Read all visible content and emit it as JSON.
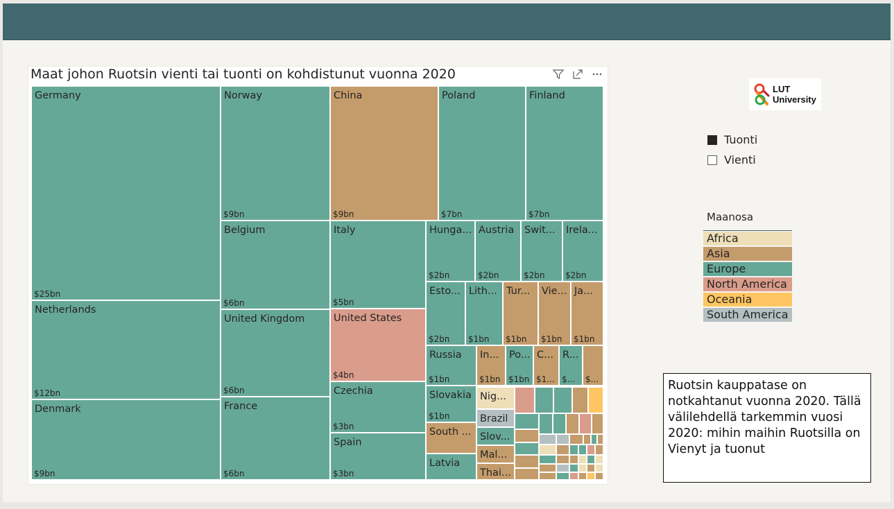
{
  "chart_data": {
    "type": "treemap",
    "title": "Maat johon Ruotsin vienti tai tuonti on kohdistunut vuonna 2020",
    "colors": {
      "Africa": "#eedfb9",
      "Asia": "#c49c6b",
      "Europe": "#66a897",
      "North America": "#da9c8b",
      "Oceania": "#fec562",
      "South America": "#b4bfc2"
    },
    "cells": [
      {
        "name": "Germany",
        "label": "Germany",
        "value_label": "$25bn",
        "value": 25,
        "continent": "Europe"
      },
      {
        "name": "Netherlands",
        "label": "Netherlands",
        "value_label": "$12bn",
        "value": 12,
        "continent": "Europe"
      },
      {
        "name": "Denmark",
        "label": "Denmark",
        "value_label": "$9bn",
        "value": 9,
        "continent": "Europe"
      },
      {
        "name": "Norway",
        "label": "Norway",
        "value_label": "$9bn",
        "value": 9,
        "continent": "Europe"
      },
      {
        "name": "China",
        "label": "China",
        "value_label": "$9bn",
        "value": 9,
        "continent": "Asia"
      },
      {
        "name": "Poland",
        "label": "Poland",
        "value_label": "$7bn",
        "value": 7,
        "continent": "Europe"
      },
      {
        "name": "Finland",
        "label": "Finland",
        "value_label": "$7bn",
        "value": 7,
        "continent": "Europe"
      },
      {
        "name": "Belgium",
        "label": "Belgium",
        "value_label": "$6bn",
        "value": 6,
        "continent": "Europe"
      },
      {
        "name": "United Kingdom",
        "label": "United Kingdom",
        "value_label": "$6bn",
        "value": 6,
        "continent": "Europe"
      },
      {
        "name": "France",
        "label": "France",
        "value_label": "$6bn",
        "value": 6,
        "continent": "Europe"
      },
      {
        "name": "Italy",
        "label": "Italy",
        "value_label": "$5bn",
        "value": 5,
        "continent": "Europe"
      },
      {
        "name": "United States",
        "label": "United States",
        "value_label": "$4bn",
        "value": 4,
        "continent": "North America"
      },
      {
        "name": "Czechia",
        "label": "Czechia",
        "value_label": "$3bn",
        "value": 3,
        "continent": "Europe"
      },
      {
        "name": "Spain",
        "label": "Spain",
        "value_label": "$3bn",
        "value": 3,
        "continent": "Europe"
      },
      {
        "name": "Hungary",
        "label": "Hunga...",
        "value_label": "$2bn",
        "value": 2,
        "continent": "Europe"
      },
      {
        "name": "Austria",
        "label": "Austria",
        "value_label": "$2bn",
        "value": 2,
        "continent": "Europe"
      },
      {
        "name": "Switzerland",
        "label": "Swit...",
        "value_label": "$2bn",
        "value": 2,
        "continent": "Europe"
      },
      {
        "name": "Ireland",
        "label": "Irela...",
        "value_label": "$2bn",
        "value": 2,
        "continent": "Europe"
      },
      {
        "name": "Estonia",
        "label": "Esto...",
        "value_label": "$2bn",
        "value": 2,
        "continent": "Europe"
      },
      {
        "name": "Lithuania",
        "label": "Lith...",
        "value_label": "$1bn",
        "value": 1,
        "continent": "Europe"
      },
      {
        "name": "Turkey",
        "label": "Tur...",
        "value_label": "$1bn",
        "value": 1,
        "continent": "Asia"
      },
      {
        "name": "Vietnam",
        "label": "Vie...",
        "value_label": "$1bn",
        "value": 1,
        "continent": "Asia"
      },
      {
        "name": "Japan",
        "label": "Ja...",
        "value_label": "$1bn",
        "value": 1,
        "continent": "Asia"
      },
      {
        "name": "Russia",
        "label": "Russia",
        "value_label": "$1bn",
        "value": 1,
        "continent": "Europe"
      },
      {
        "name": "In...",
        "label": "In...",
        "value_label": "$1bn",
        "value": 1,
        "continent": "Asia"
      },
      {
        "name": "Po...",
        "label": "Po...",
        "value_label": "$1bn",
        "value": 1,
        "continent": "Europe"
      },
      {
        "name": "C...",
        "label": "C...",
        "value_label": "$1...",
        "value": 1,
        "continent": "Asia"
      },
      {
        "name": "R...",
        "label": "R...",
        "value_label": "$...",
        "value": 1,
        "continent": "Europe"
      },
      {
        "name": "Asia-small-1",
        "label": "",
        "value_label": "$...",
        "value": 1,
        "continent": "Asia"
      },
      {
        "name": "Slovakia",
        "label": "Slovakia",
        "value_label": "$1bn",
        "value": 1,
        "continent": "Europe"
      },
      {
        "name": "South ...",
        "label": "South ...",
        "value_label": "",
        "value": 1,
        "continent": "Asia"
      },
      {
        "name": "Latvia",
        "label": "Latvia",
        "value_label": "",
        "value": 1,
        "continent": "Europe"
      },
      {
        "name": "Nigeria",
        "label": "Nig...",
        "value_label": "",
        "value": 0.5,
        "continent": "Africa"
      },
      {
        "name": "Brazil",
        "label": "Brazil",
        "value_label": "",
        "value": 0.5,
        "continent": "South America"
      },
      {
        "name": "Slovenia",
        "label": "Slov...",
        "value_label": "",
        "value": 0.5,
        "continent": "Europe"
      },
      {
        "name": "Malaysia",
        "label": "Mal...",
        "value_label": "",
        "value": 0.5,
        "continent": "Asia"
      },
      {
        "name": "Thailand",
        "label": "Thai...",
        "value_label": "",
        "value": 0.5,
        "continent": "Asia"
      }
    ]
  },
  "visual_header": {
    "filter_icon": "filter-icon",
    "focus_icon": "focus-mode-icon",
    "more_icon": "more-options-icon"
  },
  "logo": {
    "line1": "LUT",
    "line2": "University"
  },
  "slicer": [
    {
      "label": "Tuonti",
      "checked": true
    },
    {
      "label": "Vienti",
      "checked": false
    }
  ],
  "legend": {
    "title": "Maanosa",
    "items": [
      "Africa",
      "Asia",
      "Europe",
      "North America",
      "Oceania",
      "South America"
    ]
  },
  "note": {
    "text": "Ruotsin kauppatase on notkahtanut vuonna 2020. Tällä välilehdellä tarkemmin vuosi 2020: mihin maihin Ruotsilla on Vienyt ja tuonut"
  }
}
